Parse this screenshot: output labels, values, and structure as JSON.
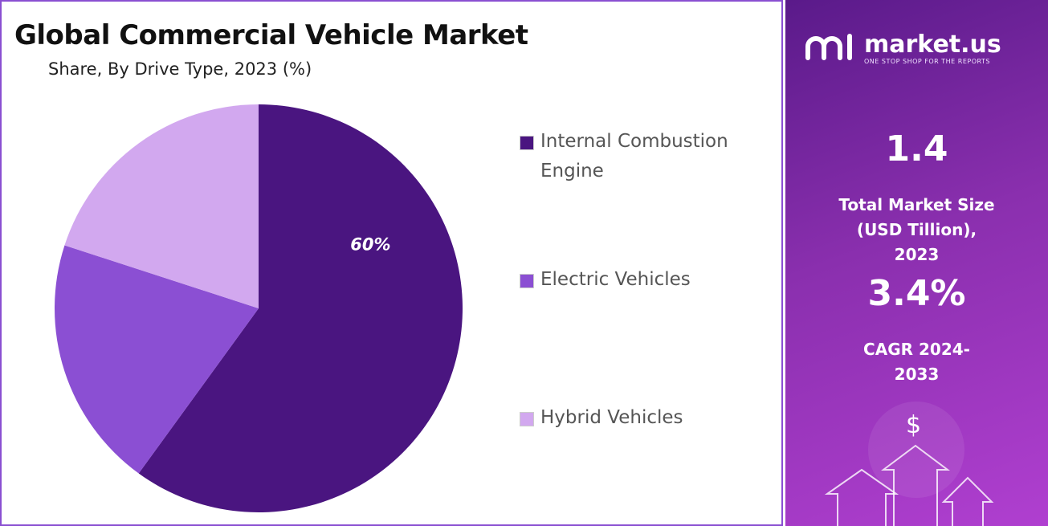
{
  "chart_data": {
    "type": "pie",
    "title": "Global Commercial Vehicle Market",
    "subtitle": "Share, By Drive Type, 2023 (%)",
    "categories": [
      "Internal Combustion Engine",
      "Electric Vehicles",
      "Hybrid Vehicles"
    ],
    "values": [
      60,
      20,
      20
    ],
    "value_labels": [
      "60%",
      null,
      null
    ],
    "colors": [
      "#4a1580",
      "#8b4fd3",
      "#d2a8ef"
    ]
  },
  "sidebar": {
    "brand": "market.us",
    "tagline": "ONE STOP SHOP FOR THE REPORTS",
    "stats": [
      {
        "value": "1.4",
        "label": "Total Market Size (USD Tillion), 2023"
      },
      {
        "value": "3.4%",
        "label": "CAGR 2024-2033"
      }
    ],
    "icon": "$"
  }
}
